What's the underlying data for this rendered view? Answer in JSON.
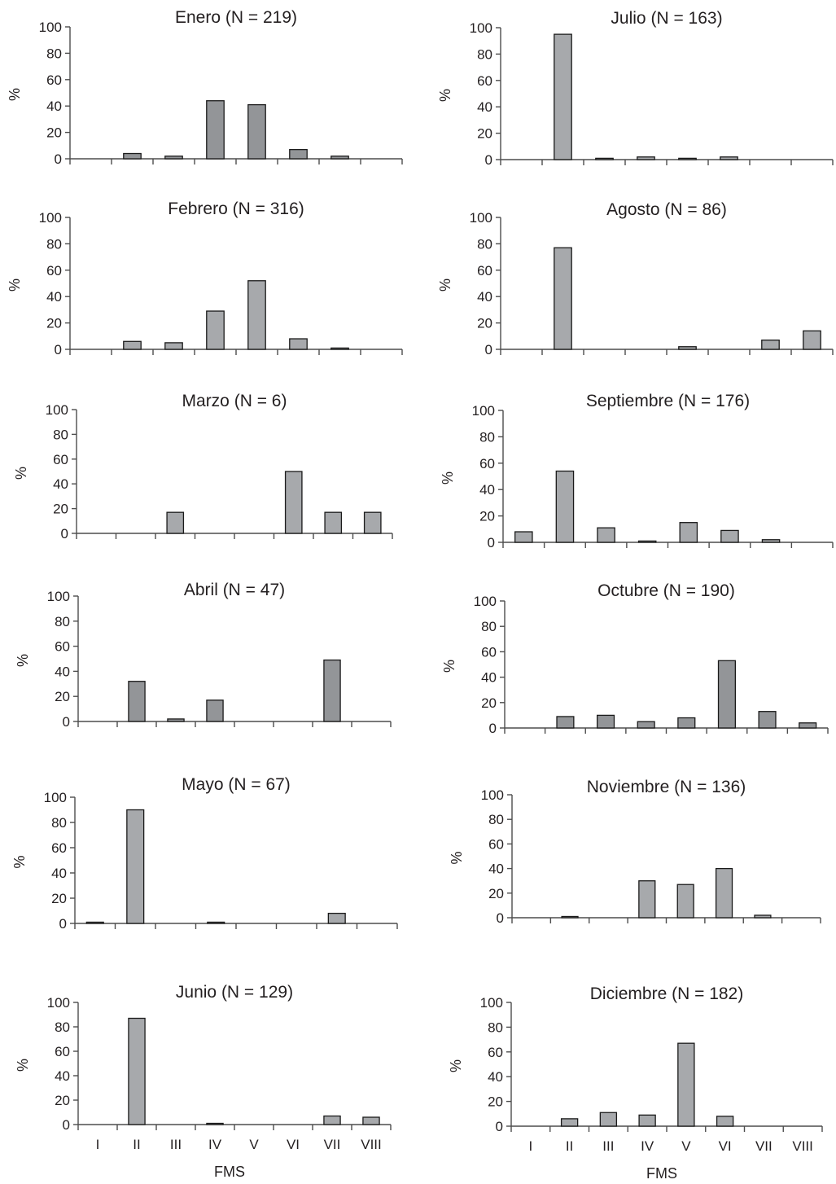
{
  "palette": {
    "bar_fill": "#a7a9ac",
    "bar_fill_dark": "#939598",
    "bar_stroke": "#1a1a1a",
    "axis": "#4d4d4d",
    "text": "#231f20"
  },
  "chart_data": [
    {
      "type": "bar",
      "title": "Enero (N = 219)",
      "ylabel": "%",
      "xlabel": "",
      "categories": [
        "I",
        "II",
        "III",
        "IV",
        "V",
        "VI",
        "VII",
        "VIII"
      ],
      "values": [
        0,
        4,
        2,
        44,
        41,
        7,
        2,
        0
      ],
      "ylim": [
        0,
        100
      ],
      "yticks": [
        0,
        20,
        40,
        60,
        80,
        100
      ],
      "show_category_labels": false,
      "grid": false
    },
    {
      "type": "bar",
      "title": "Julio (N = 163)",
      "ylabel": "%",
      "xlabel": "",
      "categories": [
        "I",
        "II",
        "III",
        "IV",
        "V",
        "VI",
        "VII",
        "VIII"
      ],
      "values": [
        0,
        95,
        1,
        2,
        1,
        2,
        0,
        0
      ],
      "ylim": [
        0,
        100
      ],
      "yticks": [
        0,
        20,
        40,
        60,
        80,
        100
      ],
      "show_category_labels": false,
      "grid": false
    },
    {
      "type": "bar",
      "title": "Febrero (N = 316)",
      "ylabel": "%",
      "xlabel": "",
      "categories": [
        "I",
        "II",
        "III",
        "IV",
        "V",
        "VI",
        "VII",
        "VIII"
      ],
      "values": [
        0,
        6,
        5,
        29,
        52,
        8,
        1,
        0
      ],
      "ylim": [
        0,
        100
      ],
      "yticks": [
        0,
        20,
        40,
        60,
        80,
        100
      ],
      "show_category_labels": false,
      "grid": false
    },
    {
      "type": "bar",
      "title": "Agosto (N = 86)",
      "ylabel": "%",
      "xlabel": "",
      "categories": [
        "I",
        "II",
        "III",
        "IV",
        "V",
        "VI",
        "VII",
        "VIII"
      ],
      "values": [
        0,
        77,
        0,
        0,
        2,
        0,
        7,
        14
      ],
      "ylim": [
        0,
        100
      ],
      "yticks": [
        0,
        20,
        40,
        60,
        80,
        100
      ],
      "show_category_labels": false,
      "grid": false
    },
    {
      "type": "bar",
      "title": "Marzo (N = 6)",
      "ylabel": "%",
      "xlabel": "",
      "categories": [
        "I",
        "II",
        "III",
        "IV",
        "V",
        "VI",
        "VII",
        "VIII"
      ],
      "values": [
        0,
        0,
        17,
        0,
        0,
        50,
        17,
        17
      ],
      "ylim": [
        0,
        100
      ],
      "yticks": [
        0,
        20,
        40,
        60,
        80,
        100
      ],
      "show_category_labels": false,
      "grid": false
    },
    {
      "type": "bar",
      "title": "Septiembre (N = 176)",
      "ylabel": "%",
      "xlabel": "",
      "categories": [
        "I",
        "II",
        "III",
        "IV",
        "V",
        "VI",
        "VII",
        "VIII"
      ],
      "values": [
        8,
        54,
        11,
        1,
        15,
        9,
        2,
        0
      ],
      "ylim": [
        0,
        100
      ],
      "yticks": [
        0,
        20,
        40,
        60,
        80,
        100
      ],
      "show_category_labels": false,
      "grid": false
    },
    {
      "type": "bar",
      "title": "Abril (N = 47)",
      "ylabel": "%",
      "xlabel": "",
      "categories": [
        "I",
        "II",
        "III",
        "IV",
        "V",
        "VI",
        "VII",
        "VIII"
      ],
      "values": [
        0,
        32,
        2,
        17,
        0,
        0,
        49,
        0
      ],
      "ylim": [
        0,
        100
      ],
      "yticks": [
        0,
        20,
        40,
        60,
        80,
        100
      ],
      "show_category_labels": false,
      "grid": false
    },
    {
      "type": "bar",
      "title": "Octubre (N = 190)",
      "ylabel": "%",
      "xlabel": "",
      "categories": [
        "I",
        "II",
        "III",
        "IV",
        "V",
        "VI",
        "VII",
        "VIII"
      ],
      "values": [
        0,
        9,
        10,
        5,
        8,
        53,
        13,
        4
      ],
      "ylim": [
        0,
        100
      ],
      "yticks": [
        0,
        20,
        40,
        60,
        80,
        100
      ],
      "show_category_labels": false,
      "grid": false
    },
    {
      "type": "bar",
      "title": "Mayo (N = 67)",
      "ylabel": "%",
      "xlabel": "",
      "categories": [
        "I",
        "II",
        "III",
        "IV",
        "V",
        "VI",
        "VII",
        "VIII"
      ],
      "values": [
        1,
        90,
        0,
        1,
        0,
        0,
        8,
        0
      ],
      "ylim": [
        0,
        100
      ],
      "yticks": [
        0,
        20,
        40,
        60,
        80,
        100
      ],
      "show_category_labels": false,
      "grid": false
    },
    {
      "type": "bar",
      "title": "Noviembre (N = 136)",
      "ylabel": "%",
      "xlabel": "",
      "categories": [
        "I",
        "II",
        "III",
        "IV",
        "V",
        "VI",
        "VII",
        "VIII"
      ],
      "values": [
        0,
        1,
        0,
        30,
        27,
        40,
        2,
        0
      ],
      "ylim": [
        0,
        100
      ],
      "yticks": [
        0,
        20,
        40,
        60,
        80,
        100
      ],
      "show_category_labels": false,
      "grid": false
    },
    {
      "type": "bar",
      "title": "Junio (N = 129)",
      "ylabel": "%",
      "xlabel": "FMS",
      "categories": [
        "I",
        "II",
        "III",
        "IV",
        "V",
        "VI",
        "VII",
        "VIII"
      ],
      "values": [
        0,
        87,
        0,
        1,
        0,
        0,
        7,
        6
      ],
      "ylim": [
        0,
        100
      ],
      "yticks": [
        0,
        20,
        40,
        60,
        80,
        100
      ],
      "show_category_labels": true,
      "grid": false
    },
    {
      "type": "bar",
      "title": "Diciembre (N = 182)",
      "ylabel": "%",
      "xlabel": "FMS",
      "categories": [
        "I",
        "II",
        "III",
        "IV",
        "V",
        "VI",
        "VII",
        "VIII"
      ],
      "values": [
        0,
        6,
        11,
        9,
        67,
        8,
        0,
        0
      ],
      "ylim": [
        0,
        100
      ],
      "yticks": [
        0,
        20,
        40,
        60,
        80,
        100
      ],
      "show_category_labels": true,
      "grid": false
    }
  ]
}
